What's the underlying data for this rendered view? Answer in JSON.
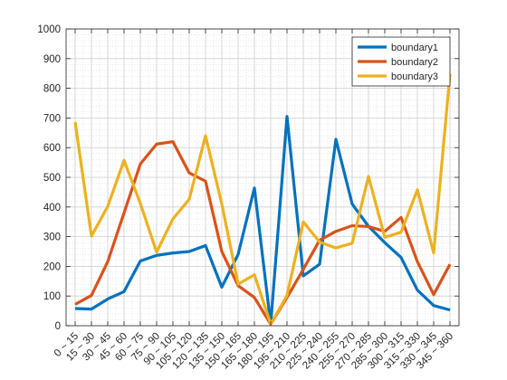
{
  "chart_data": {
    "type": "line",
    "title": "",
    "xlabel": "",
    "ylabel": "",
    "ylim": [
      0,
      1000
    ],
    "yticks": [
      0,
      100,
      200,
      300,
      400,
      500,
      600,
      700,
      800,
      900,
      1000
    ],
    "categories": [
      "0 ~ 15",
      "15 ~ 30",
      "30 ~ 45",
      "45 ~ 60",
      "60 ~ 75",
      "75 ~ 90",
      "90 ~ 105",
      "105 ~ 120",
      "120 ~ 135",
      "135 ~ 150",
      "150 ~ 165",
      "165 ~ 180",
      "180 ~ 195",
      "195 ~ 210",
      "210 ~ 225",
      "225 ~ 240",
      "240 ~ 255",
      "255 ~ 270",
      "270 ~ 285",
      "285 ~ 300",
      "300 ~ 315",
      "315 ~ 330",
      "330 ~ 345",
      "345 ~ 360"
    ],
    "grid": "on (major and minor)",
    "legend_position": "top-right",
    "series": [
      {
        "name": "boundary1",
        "color": "#0072BD",
        "values": [
          58,
          56,
          90,
          115,
          218,
          237,
          245,
          250,
          270,
          130,
          240,
          464,
          5,
          705,
          168,
          207,
          628,
          410,
          335,
          280,
          230,
          120,
          68,
          53
        ]
      },
      {
        "name": "boundary2",
        "color": "#D95319",
        "values": [
          72,
          102,
          216,
          380,
          545,
          612,
          620,
          515,
          487,
          250,
          135,
          95,
          5,
          95,
          190,
          288,
          318,
          337,
          334,
          318,
          365,
          216,
          105,
          207
        ]
      },
      {
        "name": "boundary3",
        "color": "#EDB120",
        "values": [
          686,
          302,
          402,
          557,
          412,
          248,
          360,
          426,
          640,
          410,
          140,
          172,
          5,
          102,
          350,
          282,
          262,
          278,
          503,
          298,
          315,
          458,
          245,
          848
        ]
      }
    ]
  }
}
